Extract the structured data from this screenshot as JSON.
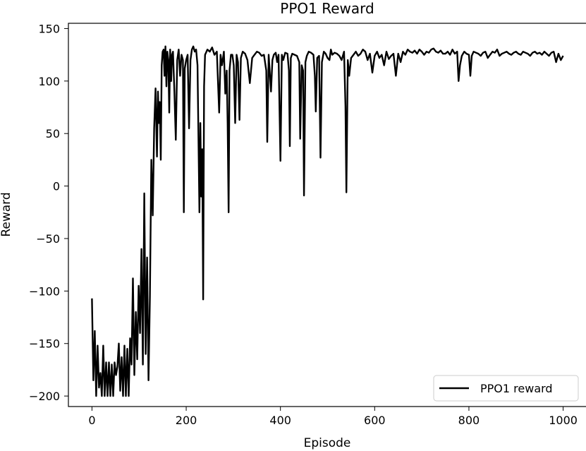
{
  "chart_data": {
    "type": "line",
    "title": "PPO1 Reward",
    "xlabel": "Episode",
    "ylabel": "Reward",
    "xlim": [
      -50,
      1050
    ],
    "ylim": [
      -210,
      155
    ],
    "xticks": [
      0,
      200,
      400,
      600,
      800,
      1000
    ],
    "yticks": [
      -200,
      -150,
      -100,
      -50,
      0,
      50,
      100,
      150
    ],
    "xtick_labels": [
      "0",
      "200",
      "400",
      "600",
      "800",
      "1000"
    ],
    "ytick_labels": [
      "−200",
      "−150",
      "−100",
      "−50",
      "0",
      "50",
      "100",
      "150"
    ],
    "grid": false,
    "legend": {
      "position": "lower-right",
      "entries": [
        "PPO1 reward"
      ]
    },
    "series": [
      {
        "name": "PPO1 reward",
        "color": "#000000",
        "points": [
          [
            0,
            -107
          ],
          [
            3,
            -185
          ],
          [
            6,
            -138
          ],
          [
            9,
            -200
          ],
          [
            12,
            -152
          ],
          [
            15,
            -192
          ],
          [
            18,
            -178
          ],
          [
            21,
            -200
          ],
          [
            24,
            -152
          ],
          [
            27,
            -200
          ],
          [
            30,
            -168
          ],
          [
            33,
            -200
          ],
          [
            36,
            -168
          ],
          [
            39,
            -200
          ],
          [
            42,
            -170
          ],
          [
            45,
            -200
          ],
          [
            48,
            -168
          ],
          [
            51,
            -180
          ],
          [
            54,
            -172
          ],
          [
            57,
            -150
          ],
          [
            60,
            -195
          ],
          [
            63,
            -163
          ],
          [
            66,
            -200
          ],
          [
            69,
            -152
          ],
          [
            72,
            -200
          ],
          [
            75,
            -155
          ],
          [
            78,
            -200
          ],
          [
            81,
            -145
          ],
          [
            84,
            -170
          ],
          [
            87,
            -88
          ],
          [
            90,
            -180
          ],
          [
            93,
            -120
          ],
          [
            96,
            -165
          ],
          [
            99,
            -95
          ],
          [
            102,
            -140
          ],
          [
            105,
            -60
          ],
          [
            108,
            -170
          ],
          [
            111,
            -7
          ],
          [
            114,
            -160
          ],
          [
            117,
            -68
          ],
          [
            120,
            -185
          ],
          [
            123,
            -105
          ],
          [
            126,
            25
          ],
          [
            129,
            -28
          ],
          [
            132,
            55
          ],
          [
            135,
            93
          ],
          [
            138,
            28
          ],
          [
            140,
            90
          ],
          [
            142,
            60
          ],
          [
            144,
            80
          ],
          [
            146,
            25
          ],
          [
            148,
            115
          ],
          [
            150,
            128
          ],
          [
            152,
            130
          ],
          [
            154,
            105
          ],
          [
            156,
            133
          ],
          [
            158,
            95
          ],
          [
            160,
            128
          ],
          [
            162,
            120
          ],
          [
            164,
            70
          ],
          [
            166,
            130
          ],
          [
            168,
            100
          ],
          [
            170,
            125
          ],
          [
            172,
            128
          ],
          [
            175,
            90
          ],
          [
            178,
            44
          ],
          [
            181,
            120
          ],
          [
            184,
            130
          ],
          [
            187,
            105
          ],
          [
            190,
            125
          ],
          [
            193,
            120
          ],
          [
            195,
            -25
          ],
          [
            197,
            112
          ],
          [
            200,
            120
          ],
          [
            203,
            125
          ],
          [
            206,
            55
          ],
          [
            209,
            120
          ],
          [
            212,
            130
          ],
          [
            215,
            133
          ],
          [
            218,
            128
          ],
          [
            221,
            130
          ],
          [
            224,
            115
          ],
          [
            228,
            -25
          ],
          [
            230,
            60
          ],
          [
            232,
            -10
          ],
          [
            234,
            35
          ],
          [
            236,
            -108
          ],
          [
            238,
            95
          ],
          [
            240,
            125
          ],
          [
            245,
            130
          ],
          [
            250,
            128
          ],
          [
            255,
            132
          ],
          [
            260,
            125
          ],
          [
            265,
            128
          ],
          [
            270,
            70
          ],
          [
            273,
            125
          ],
          [
            276,
            115
          ],
          [
            280,
            128
          ],
          [
            283,
            88
          ],
          [
            286,
            110
          ],
          [
            288,
            60
          ],
          [
            290,
            -25
          ],
          [
            292,
            110
          ],
          [
            295,
            125
          ],
          [
            298,
            125
          ],
          [
            301,
            115
          ],
          [
            304,
            60
          ],
          [
            307,
            125
          ],
          [
            310,
            118
          ],
          [
            313,
            63
          ],
          [
            316,
            122
          ],
          [
            320,
            128
          ],
          [
            325,
            126
          ],
          [
            330,
            120
          ],
          [
            335,
            98
          ],
          [
            340,
            122
          ],
          [
            345,
            125
          ],
          [
            350,
            128
          ],
          [
            355,
            127
          ],
          [
            360,
            124
          ],
          [
            365,
            125
          ],
          [
            370,
            110
          ],
          [
            372,
            42
          ],
          [
            375,
            125
          ],
          [
            380,
            90
          ],
          [
            383,
            120
          ],
          [
            386,
            125
          ],
          [
            390,
            127
          ],
          [
            393,
            118
          ],
          [
            396,
            125
          ],
          [
            400,
            24
          ],
          [
            403,
            125
          ],
          [
            406,
            120
          ],
          [
            410,
            127
          ],
          [
            415,
            126
          ],
          [
            418,
            110
          ],
          [
            420,
            38
          ],
          [
            422,
            122
          ],
          [
            425,
            126
          ],
          [
            430,
            125
          ],
          [
            435,
            124
          ],
          [
            440,
            118
          ],
          [
            442,
            45
          ],
          [
            445,
            115
          ],
          [
            448,
            110
          ],
          [
            450,
            -9
          ],
          [
            453,
            118
          ],
          [
            456,
            124
          ],
          [
            460,
            128
          ],
          [
            465,
            127
          ],
          [
            470,
            125
          ],
          [
            473,
            105
          ],
          [
            475,
            71
          ],
          [
            478,
            122
          ],
          [
            482,
            124
          ],
          [
            485,
            27
          ],
          [
            488,
            118
          ],
          [
            492,
            128
          ],
          [
            496,
            126
          ],
          [
            500,
            122
          ],
          [
            504,
            120
          ],
          [
            507,
            130
          ],
          [
            510,
            125
          ],
          [
            515,
            127
          ],
          [
            520,
            126
          ],
          [
            525,
            124
          ],
          [
            530,
            120
          ],
          [
            535,
            128
          ],
          [
            538,
            76
          ],
          [
            540,
            -6
          ],
          [
            543,
            120
          ],
          [
            546,
            105
          ],
          [
            550,
            122
          ],
          [
            555,
            125
          ],
          [
            560,
            128
          ],
          [
            565,
            124
          ],
          [
            570,
            126
          ],
          [
            575,
            130
          ],
          [
            580,
            128
          ],
          [
            585,
            120
          ],
          [
            590,
            126
          ],
          [
            595,
            108
          ],
          [
            600,
            124
          ],
          [
            605,
            128
          ],
          [
            610,
            122
          ],
          [
            615,
            125
          ],
          [
            620,
            115
          ],
          [
            625,
            128
          ],
          [
            630,
            121
          ],
          [
            635,
            124
          ],
          [
            640,
            126
          ],
          [
            645,
            105
          ],
          [
            650,
            126
          ],
          [
            655,
            118
          ],
          [
            660,
            128
          ],
          [
            665,
            125
          ],
          [
            670,
            130
          ],
          [
            675,
            128
          ],
          [
            680,
            127
          ],
          [
            685,
            129
          ],
          [
            690,
            126
          ],
          [
            695,
            130
          ],
          [
            700,
            128
          ],
          [
            705,
            125
          ],
          [
            710,
            128
          ],
          [
            715,
            127
          ],
          [
            720,
            130
          ],
          [
            725,
            131
          ],
          [
            730,
            128
          ],
          [
            735,
            127
          ],
          [
            740,
            129
          ],
          [
            745,
            126
          ],
          [
            750,
            126
          ],
          [
            755,
            128
          ],
          [
            760,
            125
          ],
          [
            765,
            130
          ],
          [
            770,
            126
          ],
          [
            775,
            128
          ],
          [
            778,
            100
          ],
          [
            781,
            115
          ],
          [
            785,
            124
          ],
          [
            790,
            128
          ],
          [
            795,
            126
          ],
          [
            800,
            125
          ],
          [
            803,
            105
          ],
          [
            806,
            124
          ],
          [
            810,
            128
          ],
          [
            815,
            127
          ],
          [
            820,
            126
          ],
          [
            825,
            124
          ],
          [
            830,
            127
          ],
          [
            835,
            128
          ],
          [
            840,
            122
          ],
          [
            845,
            125
          ],
          [
            850,
            128
          ],
          [
            855,
            127
          ],
          [
            860,
            130
          ],
          [
            865,
            124
          ],
          [
            870,
            126
          ],
          [
            875,
            127
          ],
          [
            880,
            128
          ],
          [
            885,
            126
          ],
          [
            890,
            125
          ],
          [
            895,
            127
          ],
          [
            900,
            128
          ],
          [
            905,
            126
          ],
          [
            910,
            125
          ],
          [
            915,
            128
          ],
          [
            920,
            127
          ],
          [
            925,
            126
          ],
          [
            930,
            124
          ],
          [
            935,
            127
          ],
          [
            940,
            128
          ],
          [
            945,
            126
          ],
          [
            950,
            127
          ],
          [
            955,
            125
          ],
          [
            960,
            128
          ],
          [
            965,
            126
          ],
          [
            970,
            124
          ],
          [
            975,
            127
          ],
          [
            980,
            128
          ],
          [
            985,
            118
          ],
          [
            990,
            126
          ],
          [
            995,
            120
          ],
          [
            1000,
            124
          ]
        ]
      }
    ]
  }
}
